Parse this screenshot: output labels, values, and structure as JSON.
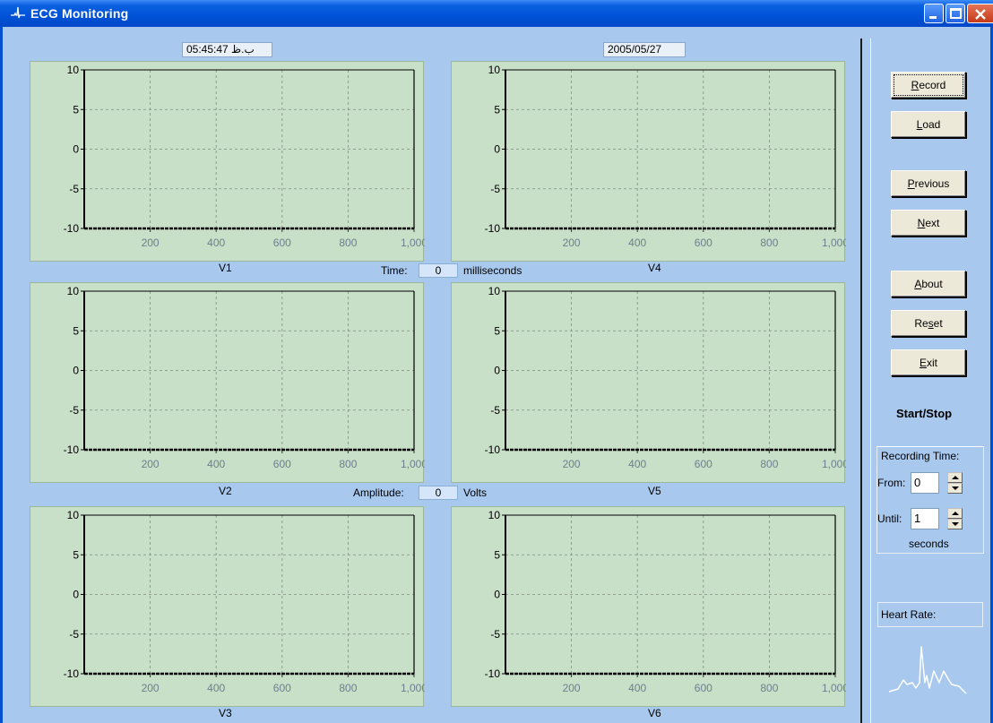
{
  "window": {
    "title": "ECG Monitoring"
  },
  "header": {
    "time": "05:45:47 ب.ظ",
    "date": "2005/05/27"
  },
  "charts": [
    {
      "label": "V1"
    },
    {
      "label": "V2"
    },
    {
      "label": "V3"
    },
    {
      "label": "V4"
    },
    {
      "label": "V5"
    },
    {
      "label": "V6"
    }
  ],
  "readouts": {
    "time_label": "Time:",
    "time_value": "0",
    "time_unit": "milliseconds",
    "amplitude_label": "Amplitude:",
    "amplitude_value": "0",
    "amplitude_unit": "Volts"
  },
  "buttons": {
    "record": {
      "prefix": "",
      "mnemonic": "R",
      "rest": "ecord"
    },
    "load": {
      "prefix": "",
      "mnemonic": "L",
      "rest": "oad"
    },
    "previous": {
      "prefix": "",
      "mnemonic": "P",
      "rest": "revious"
    },
    "next": {
      "prefix": "",
      "mnemonic": "N",
      "rest": "ext"
    },
    "about": {
      "prefix": "",
      "mnemonic": "A",
      "rest": "bout"
    },
    "reset": {
      "prefix": "Re",
      "mnemonic": "s",
      "rest": "et"
    },
    "exit": {
      "prefix": "",
      "mnemonic": "E",
      "rest": "xit"
    }
  },
  "start_stop": "Start/Stop",
  "recording_time": {
    "title": "Recording Time:",
    "from_label": "From:",
    "from_value": "0",
    "until_label": "Until:",
    "until_value": "1",
    "unit": "seconds"
  },
  "heart_rate_label": "Heart Rate:",
  "colors": {
    "background": "#a8c8ee",
    "plot_area": "#c8dfc8",
    "titlebar": "#0052d6"
  },
  "chart_data": [
    {
      "type": "line",
      "title": "",
      "xlabel": "V1",
      "ylabel": "",
      "xlim": [
        0,
        1000
      ],
      "ylim": [
        -10,
        10
      ],
      "yticks": [
        10,
        5,
        0,
        -5,
        -10
      ],
      "xticks": [
        200,
        400,
        600,
        800,
        1000
      ],
      "xtick_labels": [
        "200",
        "400",
        "600",
        "800",
        "1,000"
      ],
      "grid": true,
      "series": [
        {
          "x": [
            0,
            1000
          ],
          "y": [
            -10,
            -10
          ]
        }
      ]
    },
    {
      "type": "line",
      "title": "",
      "xlabel": "V2",
      "ylabel": "",
      "xlim": [
        0,
        1000
      ],
      "ylim": [
        -10,
        10
      ],
      "yticks": [
        10,
        5,
        0,
        -5,
        -10
      ],
      "xticks": [
        200,
        400,
        600,
        800,
        1000
      ],
      "xtick_labels": [
        "200",
        "400",
        "600",
        "800",
        "1,000"
      ],
      "grid": true,
      "series": [
        {
          "x": [
            0,
            1000
          ],
          "y": [
            -10,
            -10
          ]
        }
      ]
    },
    {
      "type": "line",
      "title": "",
      "xlabel": "V3",
      "ylabel": "",
      "xlim": [
        0,
        1000
      ],
      "ylim": [
        -10,
        10
      ],
      "yticks": [
        10,
        5,
        0,
        -5,
        -10
      ],
      "xticks": [
        200,
        400,
        600,
        800,
        1000
      ],
      "xtick_labels": [
        "200",
        "400",
        "600",
        "800",
        "1,000"
      ],
      "grid": true,
      "series": [
        {
          "x": [
            0,
            1000
          ],
          "y": [
            -10,
            -10
          ]
        }
      ]
    },
    {
      "type": "line",
      "title": "",
      "xlabel": "V4",
      "ylabel": "",
      "xlim": [
        0,
        1000
      ],
      "ylim": [
        -10,
        10
      ],
      "yticks": [
        10,
        5,
        0,
        -5,
        -10
      ],
      "xticks": [
        200,
        400,
        600,
        800,
        1000
      ],
      "xtick_labels": [
        "200",
        "400",
        "600",
        "800",
        "1,000"
      ],
      "grid": true,
      "series": [
        {
          "x": [
            0,
            1000
          ],
          "y": [
            -10,
            -10
          ]
        }
      ]
    },
    {
      "type": "line",
      "title": "",
      "xlabel": "V5",
      "ylabel": "",
      "xlim": [
        0,
        1000
      ],
      "ylim": [
        -10,
        10
      ],
      "yticks": [
        10,
        5,
        0,
        -5,
        -10
      ],
      "xticks": [
        200,
        400,
        600,
        800,
        1000
      ],
      "xtick_labels": [
        "200",
        "400",
        "600",
        "800",
        "1,000"
      ],
      "grid": true,
      "series": [
        {
          "x": [
            0,
            1000
          ],
          "y": [
            -10,
            -10
          ]
        }
      ]
    },
    {
      "type": "line",
      "title": "",
      "xlabel": "V6",
      "ylabel": "",
      "xlim": [
        0,
        1000
      ],
      "ylim": [
        -10,
        10
      ],
      "yticks": [
        10,
        5,
        0,
        -5,
        -10
      ],
      "xticks": [
        200,
        400,
        600,
        800,
        1000
      ],
      "xtick_labels": [
        "200",
        "400",
        "600",
        "800",
        "1,000"
      ],
      "grid": true,
      "series": [
        {
          "x": [
            0,
            1000
          ],
          "y": [
            -10,
            -10
          ]
        }
      ]
    }
  ]
}
